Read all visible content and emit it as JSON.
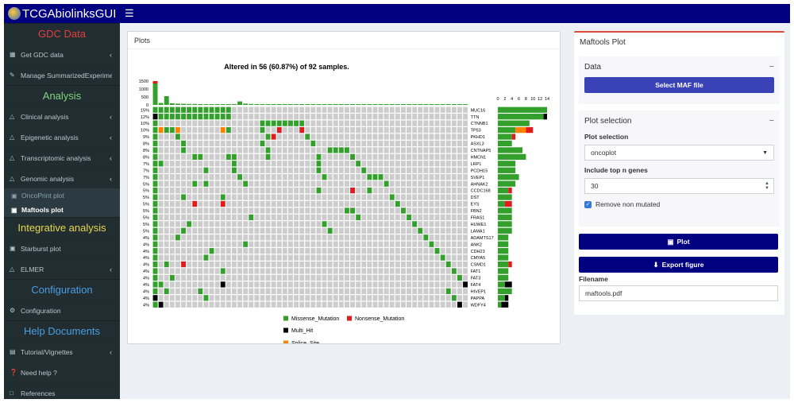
{
  "app": {
    "title": "TCGAbiolinksGUI",
    "menu_icon": "hamburger-icon"
  },
  "sidebar": {
    "sections": [
      {
        "header": "GDC Data",
        "header_color": "#e3403f",
        "items": [
          {
            "label": "Get GDC data",
            "icon": "database-icon",
            "chevron": true
          },
          {
            "label": "Manage SummarizedExperiment",
            "icon": "pencil-icon",
            "chevron": false
          }
        ]
      },
      {
        "header": "Analysis",
        "header_color": "#7cd67c",
        "items": [
          {
            "label": "Clinical analysis",
            "icon": "flask-icon",
            "chevron": true
          },
          {
            "label": "Epigenetic analysis",
            "icon": "flask-icon",
            "chevron": true
          },
          {
            "label": "Transcriptomic analysis",
            "icon": "flask-icon",
            "chevron": true
          },
          {
            "label": "Genomic analysis",
            "icon": "flask-icon",
            "chevron": true
          }
        ],
        "subitems": [
          {
            "label": "OncoPrint plot",
            "icon": "image-icon",
            "active": false
          },
          {
            "label": "Maftools plot",
            "icon": "image-icon",
            "active": true
          }
        ]
      },
      {
        "header": "Integrative analysis",
        "header_color": "#e6d84a",
        "items": [
          {
            "label": "Starburst plot",
            "icon": "image-icon",
            "chevron": false
          },
          {
            "label": "ELMER",
            "icon": "flask-icon",
            "chevron": true
          }
        ]
      },
      {
        "header": "Configuration",
        "header_color": "#4a9fe0",
        "items": [
          {
            "label": "Configuration",
            "icon": "gears-icon",
            "chevron": false
          }
        ]
      },
      {
        "header": "Help Documents",
        "header_color": "#4a9fe0",
        "items": [
          {
            "label": "Tutorial/Vignettes",
            "icon": "book-icon",
            "chevron": true
          },
          {
            "label": "Need help ?",
            "icon": "question-icon",
            "chevron": false
          },
          {
            "label": "References",
            "icon": "file-icon",
            "chevron": false
          }
        ]
      }
    ]
  },
  "plots_box": {
    "title": "Plots"
  },
  "chart_data": {
    "type": "heatmap",
    "title": "Altered in 56 (60.87%) of 92 samples.",
    "n_samples": 92,
    "n_columns_shown": 56,
    "tmb_axis_ticks": [
      "1500",
      "1000",
      "500",
      "0"
    ],
    "bar_axis_ticks": [
      "0",
      "2",
      "4",
      "6",
      "8",
      "10",
      "12",
      "14"
    ],
    "bar_axis_max": 14,
    "tmb_values": [
      1500,
      120,
      550,
      100,
      80,
      70,
      60,
      60,
      50,
      50,
      45,
      45,
      40,
      40,
      40,
      220,
      80,
      60,
      50,
      45,
      40,
      40,
      35,
      35,
      30,
      30,
      30,
      30,
      25,
      25,
      25,
      25,
      20,
      20,
      20,
      20,
      20,
      20,
      20,
      15,
      15,
      15,
      15,
      15,
      15,
      15,
      10,
      10,
      10,
      10,
      10,
      10,
      5,
      5,
      5,
      5
    ],
    "colors": {
      "Missense_Mutation": "#33a02c",
      "Nonsense_Mutation": "#e31a1c",
      "Multi_Hit": "#000000",
      "Splice_Site": "#ff7f00",
      "none": "#cccccc"
    },
    "genes": [
      {
        "name": "MUC16",
        "pct": "15%",
        "hits": [
          [
            0,
            "M"
          ],
          [
            1,
            "M"
          ],
          [
            2,
            "M"
          ],
          [
            3,
            "M"
          ],
          [
            4,
            "M"
          ],
          [
            5,
            "M"
          ],
          [
            6,
            "M"
          ],
          [
            7,
            "M"
          ],
          [
            8,
            "M"
          ],
          [
            9,
            "M"
          ],
          [
            10,
            "M"
          ],
          [
            11,
            "M"
          ],
          [
            12,
            "M"
          ],
          [
            13,
            "M"
          ]
        ]
      },
      {
        "name": "TTN",
        "pct": "12%",
        "hits": [
          [
            0,
            "H"
          ],
          [
            1,
            "M"
          ],
          [
            2,
            "M"
          ],
          [
            3,
            "M"
          ],
          [
            4,
            "M"
          ],
          [
            5,
            "M"
          ],
          [
            6,
            "M"
          ],
          [
            7,
            "M"
          ],
          [
            8,
            "M"
          ],
          [
            9,
            "M"
          ],
          [
            10,
            "M"
          ],
          [
            11,
            "M"
          ],
          [
            12,
            "M"
          ],
          [
            13,
            "M"
          ]
        ]
      },
      {
        "name": "CTNNB1",
        "pct": "10%",
        "hits": [
          [
            0,
            "M"
          ],
          [
            19,
            "M"
          ],
          [
            20,
            "M"
          ],
          [
            21,
            "M"
          ],
          [
            22,
            "M"
          ],
          [
            23,
            "M"
          ],
          [
            24,
            "M"
          ],
          [
            25,
            "M"
          ],
          [
            26,
            "M"
          ]
        ]
      },
      {
        "name": "TP53",
        "pct": "10%",
        "hits": [
          [
            0,
            "M"
          ],
          [
            1,
            "S"
          ],
          [
            2,
            "M"
          ],
          [
            3,
            "M"
          ],
          [
            4,
            "S"
          ],
          [
            12,
            "S"
          ],
          [
            13,
            "M"
          ],
          [
            19,
            "M"
          ],
          [
            22,
            "N"
          ],
          [
            26,
            "N"
          ]
        ]
      },
      {
        "name": "PKHD1",
        "pct": "9%",
        "hits": [
          [
            0,
            "M"
          ],
          [
            4,
            "M"
          ],
          [
            20,
            "M"
          ],
          [
            21,
            "N"
          ],
          [
            27,
            "M"
          ]
        ]
      },
      {
        "name": "ASXL3",
        "pct": "8%",
        "hits": [
          [
            0,
            "M"
          ],
          [
            5,
            "M"
          ],
          [
            19,
            "M"
          ],
          [
            28,
            "M"
          ]
        ]
      },
      {
        "name": "CNTNAP5",
        "pct": "8%",
        "hits": [
          [
            0,
            "M"
          ],
          [
            5,
            "M"
          ],
          [
            20,
            "M"
          ],
          [
            31,
            "M"
          ],
          [
            32,
            "M"
          ],
          [
            33,
            "M"
          ],
          [
            34,
            "M"
          ]
        ]
      },
      {
        "name": "HMCN1",
        "pct": "8%",
        "hits": [
          [
            0,
            "M"
          ],
          [
            7,
            "M"
          ],
          [
            8,
            "M"
          ],
          [
            13,
            "M"
          ],
          [
            14,
            "M"
          ],
          [
            20,
            "M"
          ],
          [
            29,
            "M"
          ],
          [
            35,
            "M"
          ]
        ]
      },
      {
        "name": "LRP1",
        "pct": "7%",
        "hits": [
          [
            0,
            "M"
          ],
          [
            1,
            "M"
          ],
          [
            14,
            "M"
          ],
          [
            29,
            "M"
          ],
          [
            36,
            "M"
          ]
        ]
      },
      {
        "name": "PCDH15",
        "pct": "7%",
        "hits": [
          [
            0,
            "M"
          ],
          [
            9,
            "M"
          ],
          [
            14,
            "M"
          ],
          [
            29,
            "M"
          ],
          [
            37,
            "M"
          ]
        ]
      },
      {
        "name": "SVEP1",
        "pct": "7%",
        "hits": [
          [
            0,
            "M"
          ],
          [
            15,
            "M"
          ],
          [
            30,
            "M"
          ],
          [
            38,
            "M"
          ],
          [
            39,
            "M"
          ],
          [
            40,
            "M"
          ]
        ]
      },
      {
        "name": "AHNAK2",
        "pct": "5%",
        "hits": [
          [
            0,
            "M"
          ],
          [
            7,
            "M"
          ],
          [
            9,
            "M"
          ],
          [
            16,
            "M"
          ],
          [
            41,
            "M"
          ]
        ]
      },
      {
        "name": "CCDC168",
        "pct": "5%",
        "hits": [
          [
            0,
            "M"
          ],
          [
            29,
            "M"
          ],
          [
            35,
            "N"
          ],
          [
            38,
            "M"
          ]
        ]
      },
      {
        "name": "DST",
        "pct": "5%",
        "hits": [
          [
            0,
            "M"
          ],
          [
            5,
            "M"
          ],
          [
            12,
            "M"
          ],
          [
            42,
            "M"
          ]
        ]
      },
      {
        "name": "EYS",
        "pct": "5%",
        "hits": [
          [
            0,
            "M"
          ],
          [
            7,
            "N"
          ],
          [
            12,
            "N"
          ],
          [
            43,
            "M"
          ]
        ]
      },
      {
        "name": "FBN2",
        "pct": "5%",
        "hits": [
          [
            0,
            "M"
          ],
          [
            34,
            "M"
          ],
          [
            35,
            "M"
          ],
          [
            44,
            "M"
          ]
        ]
      },
      {
        "name": "FRAS1",
        "pct": "5%",
        "hits": [
          [
            0,
            "M"
          ],
          [
            17,
            "M"
          ],
          [
            36,
            "M"
          ],
          [
            45,
            "M"
          ]
        ]
      },
      {
        "name": "HUWE1",
        "pct": "5%",
        "hits": [
          [
            0,
            "M"
          ],
          [
            6,
            "M"
          ],
          [
            30,
            "M"
          ],
          [
            46,
            "M"
          ]
        ]
      },
      {
        "name": "LAMA1",
        "pct": "5%",
        "hits": [
          [
            0,
            "M"
          ],
          [
            5,
            "M"
          ],
          [
            31,
            "M"
          ],
          [
            47,
            "M"
          ]
        ]
      },
      {
        "name": "ADAMTS17",
        "pct": "4%",
        "hits": [
          [
            0,
            "M"
          ],
          [
            4,
            "M"
          ],
          [
            48,
            "M"
          ]
        ]
      },
      {
        "name": "ANK2",
        "pct": "4%",
        "hits": [
          [
            0,
            "M"
          ],
          [
            16,
            "M"
          ],
          [
            49,
            "M"
          ]
        ]
      },
      {
        "name": "CDH23",
        "pct": "4%",
        "hits": [
          [
            0,
            "M"
          ],
          [
            10,
            "M"
          ],
          [
            50,
            "M"
          ]
        ]
      },
      {
        "name": "CMYA5",
        "pct": "4%",
        "hits": [
          [
            0,
            "M"
          ],
          [
            9,
            "M"
          ],
          [
            51,
            "M"
          ]
        ]
      },
      {
        "name": "CSMD1",
        "pct": "4%",
        "hits": [
          [
            0,
            "M"
          ],
          [
            2,
            "M"
          ],
          [
            5,
            "N"
          ],
          [
            52,
            "M"
          ]
        ]
      },
      {
        "name": "FAT1",
        "pct": "4%",
        "hits": [
          [
            0,
            "M"
          ],
          [
            12,
            "M"
          ],
          [
            53,
            "M"
          ]
        ]
      },
      {
        "name": "FAT3",
        "pct": "4%",
        "hits": [
          [
            0,
            "M"
          ],
          [
            3,
            "M"
          ],
          [
            54,
            "M"
          ]
        ]
      },
      {
        "name": "FAT4",
        "pct": "4%",
        "hits": [
          [
            0,
            "M"
          ],
          [
            1,
            "M"
          ],
          [
            12,
            "H"
          ],
          [
            55,
            "H"
          ]
        ]
      },
      {
        "name": "HIVEP1",
        "pct": "4%",
        "hits": [
          [
            0,
            "M"
          ],
          [
            2,
            "M"
          ],
          [
            8,
            "M"
          ],
          [
            52,
            "M"
          ]
        ]
      },
      {
        "name": "PAPPA",
        "pct": "4%",
        "hits": [
          [
            0,
            "H"
          ],
          [
            9,
            "M"
          ],
          [
            53,
            "M"
          ]
        ]
      },
      {
        "name": "WDFY4",
        "pct": "4%",
        "hits": [
          [
            0,
            "M"
          ],
          [
            1,
            "H"
          ],
          [
            54,
            "H"
          ]
        ]
      }
    ],
    "legend": [
      {
        "label": "Missense_Mutation",
        "key": "Missense_Mutation"
      },
      {
        "label": "Nonsense_Mutation",
        "key": "Nonsense_Mutation"
      },
      {
        "label": "Multi_Hit",
        "key": "Multi_Hit"
      },
      {
        "label": "Splice_Site",
        "key": "Splice_Site"
      }
    ]
  },
  "maftools_box": {
    "title": "Maftools Plot",
    "data_section": {
      "header": "Data",
      "collapse_label": "−",
      "select_button": "Select MAF file"
    },
    "plot_section": {
      "header": "Plot selection",
      "collapse_label": "−",
      "plot_selection_label": "Plot selection",
      "plot_selection_value": "oncoplot",
      "top_n_label": "Include top n genes",
      "top_n_value": "30",
      "remove_label": "Remove non mutated"
    },
    "plot_button": "Plot",
    "export_button": "Export figure",
    "filename_label": "Filename",
    "filename_value": "maftools.pdf"
  }
}
